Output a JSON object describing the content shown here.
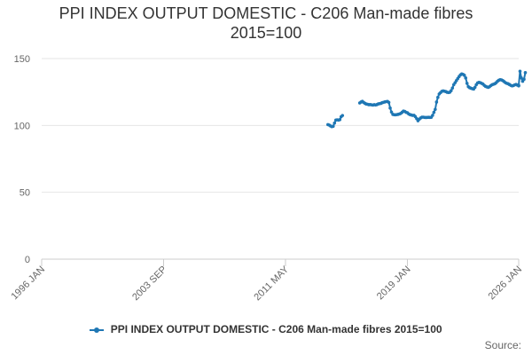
{
  "chart_data": {
    "type": "line",
    "title_lines": [
      "PPI INDEX OUTPUT DOMESTIC - C206 Man-made fibres",
      "2015=100"
    ],
    "xlabel": "",
    "ylabel": "",
    "ylim": [
      0,
      150
    ],
    "yticks": [
      0,
      50,
      100,
      150
    ],
    "xrange": [
      "1996-01",
      "2026-01"
    ],
    "xticks": [
      {
        "date": "1996-01",
        "label": "1996 JAN"
      },
      {
        "date": "2003-09",
        "label": "2003 SEP"
      },
      {
        "date": "2011-05",
        "label": "2011 MAY"
      },
      {
        "date": "2019-01",
        "label": "2019 JAN"
      },
      {
        "date": "2026-01",
        "label": "2026 JAN"
      }
    ],
    "grid": "horizontal",
    "legend_position": "bottom",
    "color": "#1f77b4",
    "series": [
      {
        "name": "PPI INDEX OUTPUT DOMESTIC - C206 Man-made fibres 2015=100",
        "segments": [
          [
            [
              "2014-01",
              100.6
            ],
            [
              "2014-02",
              100.3
            ],
            [
              "2014-03",
              99.6
            ],
            [
              "2014-04",
              99.1
            ],
            [
              "2014-05",
              99.4
            ],
            [
              "2014-06",
              101.8
            ],
            [
              "2014-07",
              104.0
            ],
            [
              "2014-08",
              104.2
            ],
            [
              "2014-09",
              104.0
            ],
            [
              "2014-10",
              104.3
            ],
            [
              "2014-11",
              106.5
            ],
            [
              "2014-12",
              107.4
            ]
          ],
          [
            [
              "2016-01",
              116.8
            ],
            [
              "2016-02",
              117.5
            ],
            [
              "2016-03",
              118.0
            ],
            [
              "2016-04",
              117.2
            ],
            [
              "2016-05",
              116.5
            ],
            [
              "2016-06",
              116.0
            ],
            [
              "2016-07",
              115.8
            ],
            [
              "2016-08",
              115.5
            ],
            [
              "2016-09",
              115.6
            ],
            [
              "2016-10",
              115.4
            ],
            [
              "2016-11",
              115.2
            ],
            [
              "2016-12",
              115.5
            ],
            [
              "2017-01",
              115.3
            ],
            [
              "2017-02",
              115.6
            ],
            [
              "2017-03",
              116.1
            ],
            [
              "2017-04",
              116.3
            ],
            [
              "2017-05",
              116.5
            ],
            [
              "2017-06",
              117.0
            ],
            [
              "2017-07",
              117.3
            ],
            [
              "2017-08",
              117.6
            ],
            [
              "2017-09",
              117.8
            ],
            [
              "2017-10",
              117.9
            ],
            [
              "2017-11",
              117.2
            ],
            [
              "2017-12",
              113.0
            ],
            [
              "2018-01",
              110.0
            ],
            [
              "2018-02",
              108.3
            ],
            [
              "2018-03",
              108.0
            ],
            [
              "2018-04",
              107.9
            ],
            [
              "2018-05",
              108.1
            ],
            [
              "2018-06",
              108.3
            ],
            [
              "2018-07",
              108.6
            ],
            [
              "2018-08",
              109.0
            ],
            [
              "2018-09",
              109.8
            ],
            [
              "2018-10",
              110.7
            ],
            [
              "2018-11",
              110.5
            ],
            [
              "2018-12",
              109.8
            ],
            [
              "2019-01",
              109.5
            ],
            [
              "2019-02",
              108.6
            ],
            [
              "2019-03",
              108.1
            ],
            [
              "2019-04",
              107.8
            ],
            [
              "2019-05",
              107.5
            ],
            [
              "2019-06",
              107.6
            ],
            [
              "2019-07",
              106.6
            ],
            [
              "2019-08",
              105.1
            ],
            [
              "2019-09",
              103.5
            ],
            [
              "2019-10",
              104.7
            ],
            [
              "2019-11",
              105.6
            ],
            [
              "2019-12",
              106.2
            ],
            [
              "2020-01",
              106.2
            ],
            [
              "2020-02",
              106.0
            ],
            [
              "2020-03",
              105.9
            ],
            [
              "2020-04",
              106.0
            ],
            [
              "2020-05",
              106.1
            ],
            [
              "2020-06",
              106.0
            ],
            [
              "2020-07",
              106.1
            ],
            [
              "2020-08",
              107.5
            ],
            [
              "2020-09",
              109.8
            ],
            [
              "2020-10",
              112.0
            ],
            [
              "2020-11",
              117.5
            ],
            [
              "2020-12",
              121.0
            ],
            [
              "2021-01",
              123.5
            ],
            [
              "2021-02",
              124.5
            ],
            [
              "2021-03",
              125.5
            ],
            [
              "2021-04",
              125.8
            ],
            [
              "2021-05",
              125.6
            ],
            [
              "2021-06",
              125.3
            ],
            [
              "2021-07",
              124.8
            ],
            [
              "2021-08",
              124.6
            ],
            [
              "2021-09",
              124.8
            ],
            [
              "2021-10",
              126.0
            ],
            [
              "2021-11",
              128.0
            ],
            [
              "2021-12",
              130.5
            ],
            [
              "2022-01",
              132.0
            ],
            [
              "2022-02",
              133.5
            ],
            [
              "2022-03",
              135.0
            ],
            [
              "2022-04",
              136.5
            ],
            [
              "2022-05",
              137.8
            ],
            [
              "2022-06",
              138.5
            ],
            [
              "2022-07",
              138.2
            ],
            [
              "2022-08",
              137.5
            ],
            [
              "2022-09",
              135.5
            ],
            [
              "2022-10",
              131.5
            ],
            [
              "2022-11",
              129.0
            ],
            [
              "2022-12",
              128.2
            ],
            [
              "2023-01",
              127.8
            ],
            [
              "2023-02",
              127.5
            ],
            [
              "2023-03",
              127.2
            ],
            [
              "2023-04",
              128.5
            ],
            [
              "2023-05",
              130.5
            ],
            [
              "2023-06",
              131.8
            ],
            [
              "2023-07",
              132.2
            ],
            [
              "2023-08",
              132.0
            ],
            [
              "2023-09",
              131.5
            ],
            [
              "2023-10",
              131.0
            ],
            [
              "2023-11",
              130.0
            ],
            [
              "2023-12",
              129.2
            ],
            [
              "2024-01",
              128.8
            ],
            [
              "2024-02",
              128.5
            ],
            [
              "2024-03",
              129.0
            ],
            [
              "2024-04",
              129.8
            ],
            [
              "2024-05",
              130.5
            ],
            [
              "2024-06",
              130.8
            ],
            [
              "2024-07",
              131.2
            ],
            [
              "2024-08",
              132.0
            ],
            [
              "2024-09",
              133.0
            ],
            [
              "2024-10",
              133.8
            ],
            [
              "2024-11",
              134.2
            ],
            [
              "2024-12",
              134.0
            ],
            [
              "2025-01",
              133.5
            ],
            [
              "2025-02",
              132.8
            ],
            [
              "2025-03",
              132.0
            ],
            [
              "2025-04",
              131.5
            ],
            [
              "2025-05",
              131.2
            ],
            [
              "2025-06",
              130.6
            ],
            [
              "2025-07",
              130.0
            ],
            [
              "2025-08",
              129.6
            ],
            [
              "2025-09",
              129.8
            ],
            [
              "2025-10",
              130.3
            ],
            [
              "2025-11",
              130.6
            ],
            [
              "2025-12",
              130.2
            ],
            [
              "2026-01",
              129.6
            ]
          ],
          [
            [
              "2026-01",
              130.0
            ],
            [
              "2026-02",
              140.5
            ],
            [
              "2026-03",
              135.5
            ],
            [
              "2026-04",
              133.0
            ],
            [
              "2026-05",
              134.5
            ],
            [
              "2026-06",
              139.5
            ]
          ]
        ]
      }
    ]
  },
  "legend": {
    "label": "PPI INDEX OUTPUT DOMESTIC - C206 Man-made fibres 2015=100"
  },
  "source_label": "Source:"
}
